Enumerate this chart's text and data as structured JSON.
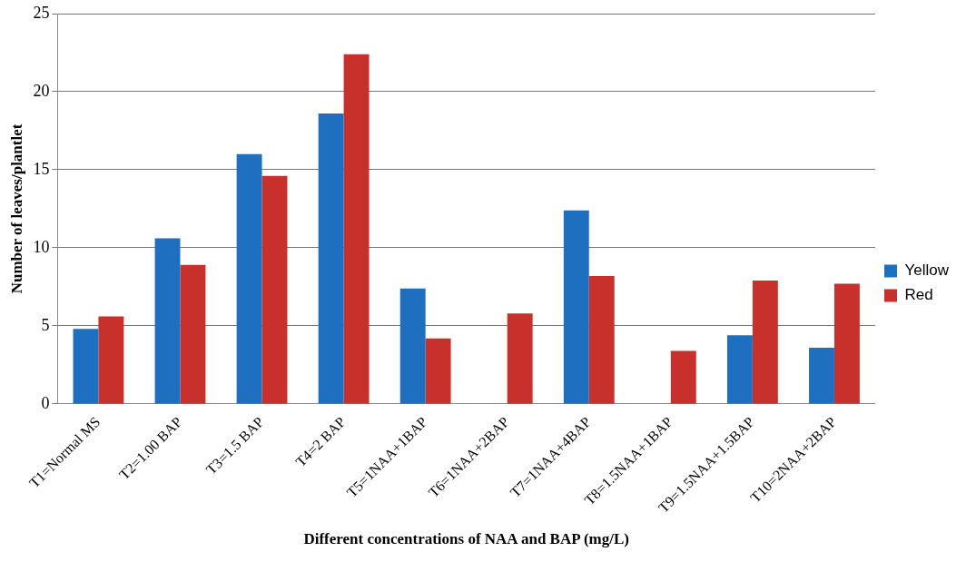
{
  "chart_data": {
    "type": "bar",
    "xlabel": "Different concentrations of NAA and BAP (mg/L)",
    "ylabel": "Number of leaves/plantlet",
    "categories": [
      "T1=Normal MS",
      "T2=1.00 BAP",
      "T3=1.5 BAP",
      "T4=2 BAP",
      "T5=1NAA+1BAP",
      "T6=1NAA+2BAP",
      "T7=1NAA+4BAP",
      "T8=1.5NAA+1BAP",
      "T9=1.5NAA+1.5BAP",
      "T10=2NAA+2BAP"
    ],
    "series": [
      {
        "name": "Yellow",
        "color": "#1f6fc0",
        "values": [
          4.8,
          10.6,
          16.0,
          18.6,
          7.4,
          0,
          12.4,
          0,
          4.4,
          3.6
        ]
      },
      {
        "name": "Red",
        "color": "#c8312b",
        "values": [
          5.6,
          8.9,
          14.6,
          22.4,
          4.2,
          5.8,
          8.2,
          3.4,
          7.9,
          7.7
        ]
      }
    ],
    "ylim": [
      0,
      25
    ],
    "yticks": [
      0,
      5,
      10,
      15,
      20,
      25
    ],
    "grid": "y",
    "legend": "right"
  }
}
